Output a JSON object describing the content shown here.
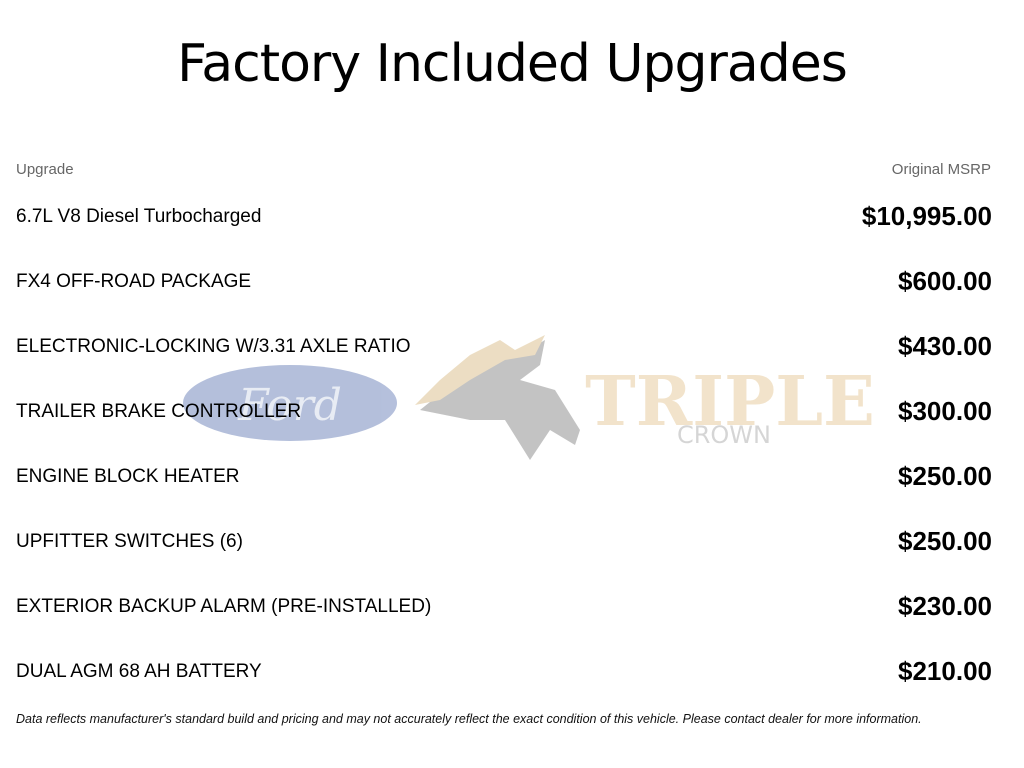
{
  "title": "Factory Included Upgrades",
  "columns": {
    "upgrade": "Upgrade",
    "msrp": "Original MSRP"
  },
  "items": [
    {
      "name": "6.7L V8 Diesel Turbocharged",
      "price": "$10,995.00"
    },
    {
      "name": "FX4 OFF-ROAD PACKAGE",
      "price": "$600.00"
    },
    {
      "name": "ELECTRONIC-LOCKING W/3.31 AXLE RATIO",
      "price": "$430.00"
    },
    {
      "name": "TRAILER BRAKE CONTROLLER",
      "price": "$300.00"
    },
    {
      "name": "ENGINE BLOCK HEATER",
      "price": "$250.00"
    },
    {
      "name": "UPFITTER SWITCHES (6)",
      "price": "$250.00"
    },
    {
      "name": "EXTERIOR BACKUP ALARM (PRE-INSTALLED)",
      "price": "$230.00"
    },
    {
      "name": "DUAL AGM 68 AH BATTERY",
      "price": "$210.00"
    }
  ],
  "watermark": {
    "ford": "Ford",
    "dealer_line1": "TRIPLE",
    "dealer_line2": "CROWN"
  },
  "disclaimer": "Data reflects manufacturer's standard build and pricing and may not accurately reflect the exact condition of this vehicle. Please contact dealer for more information."
}
